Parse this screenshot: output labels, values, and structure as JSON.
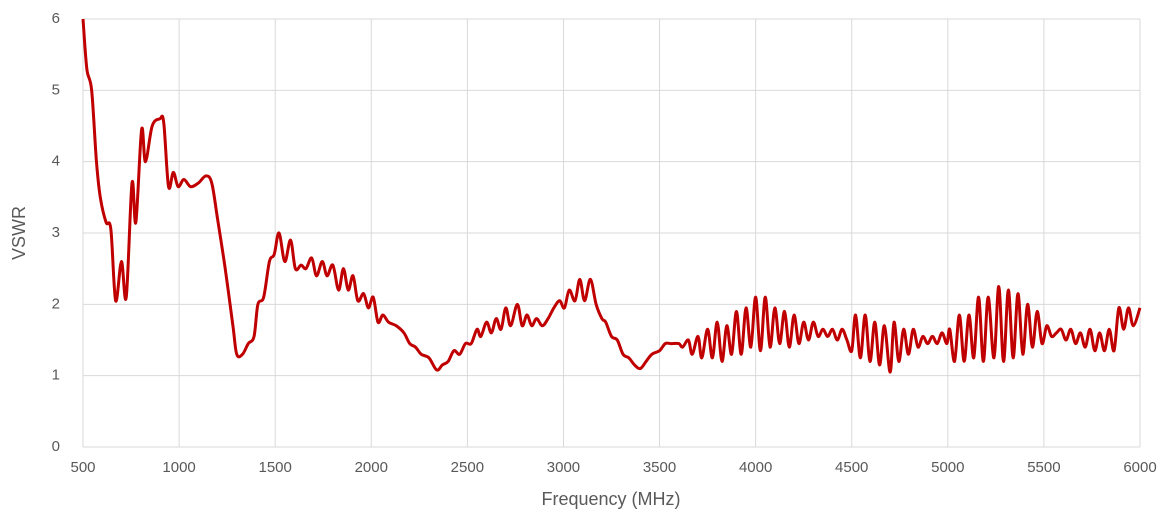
{
  "chart_data": {
    "type": "line",
    "x_label": "Frequency (MHz)",
    "y_label": "VSWR",
    "x": [
      500,
      520,
      545,
      570,
      590,
      620,
      645,
      670,
      700,
      725,
      755,
      775,
      805,
      825,
      860,
      900,
      920,
      945,
      970,
      995,
      1025,
      1060,
      1100,
      1140,
      1170,
      1200,
      1240,
      1280,
      1300,
      1330,
      1360,
      1390,
      1410,
      1440,
      1470,
      1495,
      1520,
      1550,
      1580,
      1605,
      1635,
      1660,
      1690,
      1715,
      1745,
      1770,
      1800,
      1830,
      1855,
      1880,
      1905,
      1930,
      1960,
      1985,
      2010,
      2035,
      2060,
      2090,
      2130,
      2170,
      2200,
      2230,
      2260,
      2300,
      2340,
      2370,
      2400,
      2430,
      2460,
      2490,
      2520,
      2550,
      2570,
      2600,
      2625,
      2650,
      2675,
      2700,
      2725,
      2760,
      2785,
      2810,
      2835,
      2860,
      2890,
      2920,
      2950,
      2980,
      3005,
      3030,
      3060,
      3085,
      3110,
      3140,
      3170,
      3200,
      3220,
      3250,
      3280,
      3310,
      3340,
      3370,
      3400,
      3430,
      3460,
      3500,
      3530,
      3560,
      3600,
      3620,
      3650,
      3670,
      3700,
      3720,
      3750,
      3775,
      3800,
      3825,
      3850,
      3875,
      3900,
      3925,
      3950,
      3975,
      4000,
      4025,
      4050,
      4075,
      4100,
      4125,
      4150,
      4175,
      4200,
      4225,
      4250,
      4275,
      4300,
      4325,
      4350,
      4375,
      4400,
      4425,
      4450,
      4475,
      4500,
      4520,
      4545,
      4570,
      4595,
      4620,
      4645,
      4670,
      4700,
      4720,
      4745,
      4770,
      4795,
      4820,
      4845,
      4870,
      4895,
      4920,
      4945,
      4970,
      4995,
      5010,
      5035,
      5060,
      5085,
      5110,
      5135,
      5160,
      5185,
      5210,
      5240,
      5265,
      5290,
      5315,
      5340,
      5365,
      5390,
      5415,
      5440,
      5465,
      5490,
      5515,
      5540,
      5565,
      5590,
      5615,
      5640,
      5665,
      5690,
      5715,
      5740,
      5765,
      5790,
      5815,
      5840,
      5865,
      5890,
      5915,
      5940,
      5965,
      6000
    ],
    "series": [
      {
        "name": "VSWR",
        "color": "#c00000",
        "values": [
          6.0,
          5.3,
          5.0,
          4.0,
          3.5,
          3.15,
          3.05,
          2.05,
          2.6,
          2.1,
          3.7,
          3.15,
          4.45,
          4.0,
          4.5,
          4.6,
          4.55,
          3.65,
          3.85,
          3.65,
          3.75,
          3.65,
          3.7,
          3.8,
          3.7,
          3.2,
          2.5,
          1.7,
          1.3,
          1.3,
          1.45,
          1.55,
          2.0,
          2.1,
          2.6,
          2.7,
          3.0,
          2.6,
          2.9,
          2.5,
          2.55,
          2.5,
          2.65,
          2.4,
          2.6,
          2.4,
          2.55,
          2.2,
          2.5,
          2.2,
          2.4,
          2.05,
          2.15,
          1.95,
          2.1,
          1.75,
          1.85,
          1.75,
          1.7,
          1.6,
          1.45,
          1.4,
          1.3,
          1.25,
          1.08,
          1.15,
          1.2,
          1.35,
          1.3,
          1.45,
          1.45,
          1.65,
          1.55,
          1.75,
          1.6,
          1.8,
          1.65,
          1.95,
          1.7,
          2.0,
          1.7,
          1.85,
          1.7,
          1.8,
          1.7,
          1.8,
          1.95,
          2.05,
          1.95,
          2.2,
          2.05,
          2.35,
          2.05,
          2.35,
          2.0,
          1.8,
          1.75,
          1.55,
          1.5,
          1.3,
          1.25,
          1.15,
          1.1,
          1.2,
          1.3,
          1.35,
          1.45,
          1.45,
          1.45,
          1.4,
          1.5,
          1.3,
          1.55,
          1.25,
          1.65,
          1.25,
          1.75,
          1.2,
          1.7,
          1.3,
          1.9,
          1.3,
          1.95,
          1.4,
          2.1,
          1.35,
          2.1,
          1.4,
          1.95,
          1.45,
          1.9,
          1.4,
          1.85,
          1.45,
          1.75,
          1.5,
          1.75,
          1.55,
          1.65,
          1.55,
          1.65,
          1.5,
          1.65,
          1.5,
          1.35,
          1.85,
          1.25,
          1.85,
          1.2,
          1.75,
          1.15,
          1.7,
          1.05,
          1.75,
          1.2,
          1.65,
          1.3,
          1.65,
          1.4,
          1.55,
          1.45,
          1.55,
          1.45,
          1.6,
          1.45,
          1.65,
          1.2,
          1.85,
          1.2,
          1.85,
          1.25,
          2.1,
          1.2,
          2.1,
          1.25,
          2.25,
          1.2,
          2.2,
          1.25,
          2.15,
          1.3,
          2.0,
          1.4,
          1.9,
          1.45,
          1.7,
          1.55,
          1.6,
          1.65,
          1.5,
          1.65,
          1.45,
          1.6,
          1.4,
          1.65,
          1.35,
          1.6,
          1.35,
          1.65,
          1.35,
          1.95,
          1.65,
          1.95,
          1.7,
          1.95
        ]
      }
    ],
    "xlim": [
      500,
      6000
    ],
    "xticks": [
      500,
      1000,
      1500,
      2000,
      2500,
      3000,
      3500,
      4000,
      4500,
      5000,
      5500,
      6000
    ],
    "ylim": [
      0,
      6
    ],
    "yticks": [
      0,
      1,
      2,
      3,
      4,
      5,
      6
    ],
    "grid": true
  }
}
